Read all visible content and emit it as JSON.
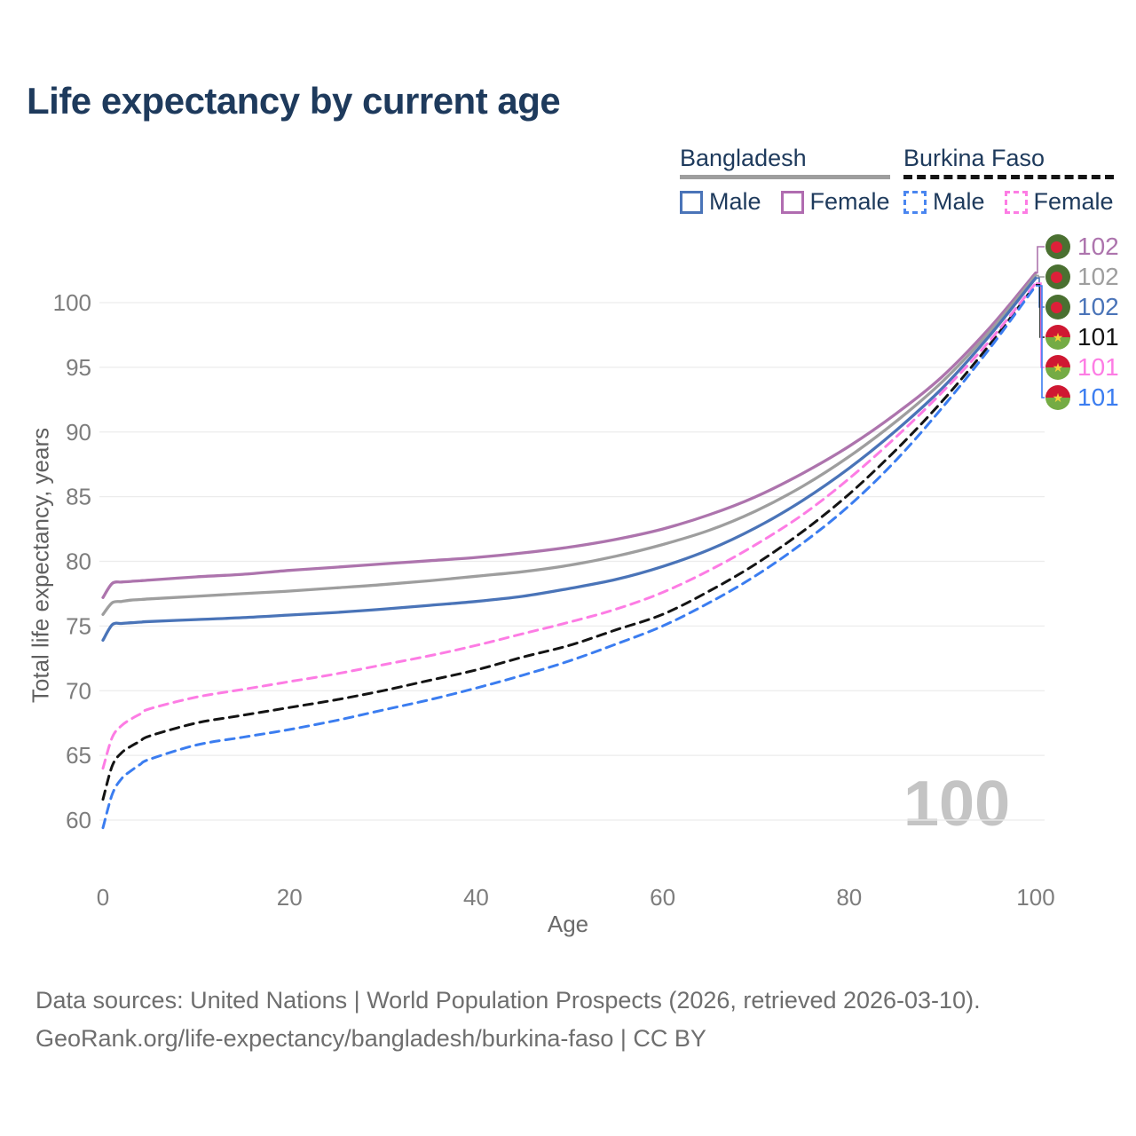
{
  "page": {
    "title": "Life expectancy by current age"
  },
  "legend": {
    "groups": [
      {
        "id": "bangladesh",
        "label": "Bangladesh",
        "line_style": "solid",
        "line_color": "#9e9e9e",
        "items": [
          {
            "id": "male",
            "label": "Male",
            "color": "#4a74b8",
            "dashed": false
          },
          {
            "id": "female",
            "label": "Female",
            "color": "#b06cb0",
            "dashed": false
          }
        ]
      },
      {
        "id": "burkina-faso",
        "label": "Burkina Faso",
        "line_style": "dashed",
        "line_color": "#141414",
        "items": [
          {
            "id": "male",
            "label": "Male",
            "color": "#4a86f0",
            "dashed": true
          },
          {
            "id": "female",
            "label": "Female",
            "color": "#fd7ce4",
            "dashed": true
          }
        ]
      }
    ]
  },
  "chart_data": {
    "type": "line",
    "title": "Life expectancy by current age",
    "xlabel": "Age",
    "ylabel": "Total life expectancy, years",
    "x_ticks": [
      0,
      20,
      40,
      60,
      80,
      100
    ],
    "y_ticks": [
      60,
      65,
      70,
      75,
      80,
      85,
      90,
      95,
      100
    ],
    "xlim": [
      0,
      100
    ],
    "ylim": [
      58.5,
      106
    ],
    "grid": "horizontal",
    "legend_position": "top-right",
    "ages": [
      0,
      1,
      2,
      3,
      4,
      5,
      10,
      15,
      20,
      25,
      30,
      35,
      40,
      45,
      50,
      55,
      60,
      65,
      70,
      75,
      80,
      85,
      90,
      95,
      100
    ],
    "series": [
      {
        "name": "Bangladesh Female",
        "country": "Bangladesh",
        "sex": "Female",
        "color": "#ad74ad",
        "dashed": false,
        "flag": "bd",
        "end_label": "102",
        "values": [
          77.2,
          78.3,
          78.4,
          78.45,
          78.5,
          78.55,
          78.8,
          79.0,
          79.3,
          79.55,
          79.8,
          80.05,
          80.3,
          80.65,
          81.1,
          81.7,
          82.5,
          83.6,
          85.0,
          86.8,
          88.9,
          91.4,
          94.3,
          98.0,
          102.3
        ]
      },
      {
        "name": "Bangladesh Both sexes",
        "country": "Bangladesh",
        "sex": "Both sexes",
        "color": "#9e9e9e",
        "dashed": false,
        "flag": "bd",
        "end_label": "102",
        "values": [
          75.9,
          76.8,
          76.9,
          77.0,
          77.05,
          77.1,
          77.3,
          77.5,
          77.7,
          77.95,
          78.2,
          78.5,
          78.85,
          79.2,
          79.7,
          80.4,
          81.3,
          82.4,
          83.9,
          85.8,
          88.1,
          90.8,
          93.9,
          97.7,
          102.1
        ]
      },
      {
        "name": "Bangladesh Male",
        "country": "Bangladesh",
        "sex": "Male",
        "color": "#4a74b8",
        "dashed": false,
        "flag": "bd",
        "end_label": "102",
        "values": [
          73.9,
          75.1,
          75.2,
          75.25,
          75.3,
          75.35,
          75.5,
          75.65,
          75.85,
          76.05,
          76.3,
          76.6,
          76.9,
          77.3,
          77.9,
          78.6,
          79.6,
          80.9,
          82.6,
          84.7,
          87.2,
          90.1,
          93.4,
          97.4,
          101.9
        ]
      },
      {
        "name": "Burkina Faso Both sexes",
        "country": "Burkina Faso",
        "sex": "Both sexes",
        "color": "#141414",
        "dashed": true,
        "flag": "bf",
        "end_label": "101",
        "values": [
          61.6,
          64.2,
          65.2,
          65.7,
          66.1,
          66.5,
          67.5,
          68.1,
          68.7,
          69.3,
          70.0,
          70.8,
          71.6,
          72.6,
          73.5,
          74.7,
          75.9,
          77.7,
          79.8,
          82.3,
          85.2,
          88.6,
          92.4,
          96.7,
          101.4
        ]
      },
      {
        "name": "Burkina Faso Female",
        "country": "Burkina Faso",
        "sex": "Female",
        "color": "#fd7ce4",
        "dashed": true,
        "flag": "bf",
        "end_label": "101",
        "values": [
          64.0,
          66.4,
          67.3,
          67.8,
          68.2,
          68.6,
          69.5,
          70.1,
          70.7,
          71.3,
          72.0,
          72.7,
          73.5,
          74.4,
          75.3,
          76.3,
          77.6,
          79.3,
          81.3,
          83.6,
          86.4,
          89.6,
          93.1,
          97.0,
          101.5
        ]
      },
      {
        "name": "Burkina Faso Male",
        "country": "Burkina Faso",
        "sex": "Male",
        "color": "#3b7df0",
        "dashed": true,
        "flag": "bf",
        "end_label": "101",
        "values": [
          59.4,
          62.0,
          63.2,
          63.8,
          64.3,
          64.7,
          65.8,
          66.4,
          67.0,
          67.7,
          68.5,
          69.3,
          70.2,
          71.2,
          72.3,
          73.6,
          75.0,
          76.8,
          78.9,
          81.4,
          84.3,
          87.8,
          91.9,
          96.4,
          101.3
        ]
      }
    ]
  },
  "watermark": "100",
  "footer": {
    "line1": "Data sources: United Nations | World Population Prospects (2026, retrieved 2026-03-10).",
    "line2": "GeoRank.org/life-expectancy/bangladesh/burkina-faso | CC BY"
  }
}
